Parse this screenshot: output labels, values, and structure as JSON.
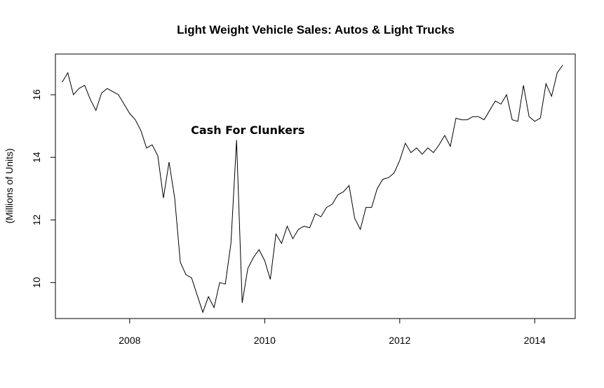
{
  "chart_data": {
    "type": "line",
    "title": "Light Weight Vehicle Sales: Autos & Light Trucks",
    "xlabel": "",
    "ylabel": "(Millions of Units)",
    "xlim": [
      2006.9,
      2014.6
    ],
    "ylim": [
      8.85,
      17.3
    ],
    "x_ticks": [
      2008,
      2010,
      2012,
      2014
    ],
    "x_tick_labels": [
      "2008",
      "2010",
      "2012",
      "2014"
    ],
    "y_ticks": [
      10,
      12,
      14,
      16
    ],
    "y_tick_labels": [
      "10",
      "12",
      "14",
      "16"
    ],
    "grid": false,
    "annotation": {
      "text": "Cash For Clunkers",
      "x": 2009.75,
      "y": 14.75
    },
    "series": [
      {
        "x_start": 2007.0,
        "x_step": 0.08333,
        "values": [
          16.4,
          16.7,
          16.0,
          16.2,
          16.3,
          15.85,
          15.5,
          16.05,
          16.2,
          16.1,
          16.0,
          15.7,
          15.4,
          15.2,
          14.85,
          14.3,
          14.4,
          14.05,
          12.7,
          13.85,
          12.7,
          10.65,
          10.25,
          10.15,
          9.6,
          9.05,
          9.55,
          9.2,
          10.0,
          9.95,
          11.25,
          14.55,
          9.35,
          10.45,
          10.8,
          11.05,
          10.7,
          10.1,
          11.55,
          11.25,
          11.8,
          11.4,
          11.7,
          11.8,
          11.75,
          12.2,
          12.1,
          12.4,
          12.5,
          12.8,
          12.9,
          13.1,
          12.05,
          11.7,
          12.4,
          12.4,
          13.0,
          13.3,
          13.35,
          13.5,
          13.9,
          14.45,
          14.15,
          14.3,
          14.1,
          14.3,
          14.15,
          14.4,
          14.7,
          14.35,
          15.25,
          15.2,
          15.2,
          15.3,
          15.3,
          15.2,
          15.5,
          15.8,
          15.7,
          16.0,
          15.2,
          15.15,
          16.3,
          15.3,
          15.15,
          15.25,
          16.35,
          15.95,
          16.7,
          16.95
        ]
      }
    ]
  }
}
